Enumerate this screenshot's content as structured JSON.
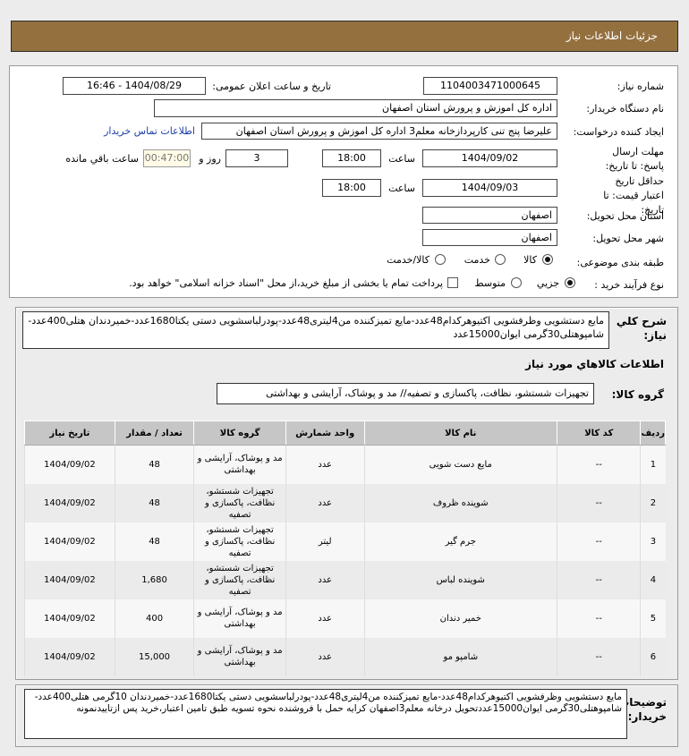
{
  "header": {
    "title": "جزئیات اطلاعات نیاز"
  },
  "form": {
    "need_number_label": "شماره نیاز:",
    "need_number": "1104003471000645",
    "announce_label": "تاریخ و ساعت اعلان عمومی:",
    "announce_value": "1404/08/29 - 16:46",
    "buyer_label": "نام دستگاه خریدار:",
    "buyer_value": "اداره کل اموزش و پرورش استان اصفهان",
    "creator_label": "ایجاد کننده درخواست:",
    "creator_value": "علیرضا پنج تنی کارپردازخانه معلم3 اداره کل اموزش و پرورش استان اصفهان",
    "contact_link": "اطلاعات تماس خریدار",
    "deadline_label": "مهلت ارسال پاسخ: تا تاریخ:",
    "deadline_date": "1404/09/02",
    "time_label": "ساعت",
    "deadline_time": "18:00",
    "days": "3",
    "days_label": "روز و",
    "remaining": "00:47:00",
    "remaining_label": "ساعت باقي مانده",
    "validity_label": "حداقل تاریخ اعتبار قیمت: تا تاریخ:",
    "validity_date": "1404/09/03",
    "validity_time": "18:00",
    "province_label": "استان محل تحویل:",
    "province": "اصفهان",
    "city_label": "شهر محل تحویل:",
    "city": "اصفهان",
    "category_label": "طبقه بندی موضوعی:",
    "category_options": [
      "كالا",
      "خدمت",
      "كالا/خدمت"
    ],
    "category_selected": "كالا",
    "purchase_label": "نوع فرآیند خرید :",
    "purchase_options": [
      "جزیي",
      "متوسط"
    ],
    "purchase_selected": "جزیي",
    "payment_note": "پرداخت تمام یا بخشی از مبلغ خرید،از محل \"اسناد خزانه اسلامی\" خواهد بود."
  },
  "summary": {
    "label": "شرح کلي نیاز:",
    "text": "مایع دستشویی وظرفشویی اکتیوهرکدام48عدد-مایع تمیزکننده من4لیتری48عدد-پودرلباسشویی دستی یکتا1680عدد-خمیردندان هتلی400عدد-شامپوهتلی30گرمی ایوان15000عدد"
  },
  "goods": {
    "title": "اطلاعات کالاهاي مورد نیاز",
    "group_label": "گروه کالا:",
    "group_value": "تجهیزات شستشو، نظافت، پاکسازی و تصفیه// مد و پوشاک، آرایشی و بهداشتی",
    "columns": [
      "ردیف",
      "کد کالا",
      "نام کالا",
      "واحد شمارش",
      "گروه کالا",
      "تعداد / مقدار",
      "تاریخ نیاز"
    ],
    "rows": [
      [
        "1",
        "--",
        "مایع دست شویی",
        "عدد",
        "مد و پوشاک، آرایشی و بهداشتی",
        "48",
        "1404/09/02"
      ],
      [
        "2",
        "--",
        "شوینده ظروف",
        "عدد",
        "تجهیزات شستشو، نظافت، پاکسازی و تصفیه",
        "48",
        "1404/09/02"
      ],
      [
        "3",
        "--",
        "جرم گیر",
        "لیتر",
        "تجهیزات شستشو، نظافت، پاکسازی و تصفیه",
        "48",
        "1404/09/02"
      ],
      [
        "4",
        "--",
        "شوینده لباس",
        "عدد",
        "تجهیزات شستشو، نظافت، پاکسازی و تصفیه",
        "1,680",
        "1404/09/02"
      ],
      [
        "5",
        "--",
        "خمیر دندان",
        "عدد",
        "مد و پوشاک، آرایشی و بهداشتی",
        "400",
        "1404/09/02"
      ],
      [
        "6",
        "--",
        "شامپو مو",
        "عدد",
        "مد و پوشاک، آرایشی و بهداشتی",
        "15,000",
        "1404/09/02"
      ]
    ]
  },
  "buyer_notes": {
    "label": "توضیحات خریدار:",
    "text": "مایع دستشویی وظرفشویی اکتیوهرکدام48عدد-مایع تمیزکننده من4لیتری48عدد-پودرلباسشویی دستی یکتا1680عدد-خمیردندان 10گرمی هتلی400عدد-شامپوهتلی30گرمی ایوان15000عددتحویل درخانه معلم3اصفهان کرایه حمل با فروشنده نحوه تسویه طبق تامین اعتبار،خرید پس ازتاییدنمونه"
  },
  "colors": {
    "header_bg": "#94703f",
    "link": "#1a3ea8",
    "remaining_bg": "#fffbe6"
  }
}
